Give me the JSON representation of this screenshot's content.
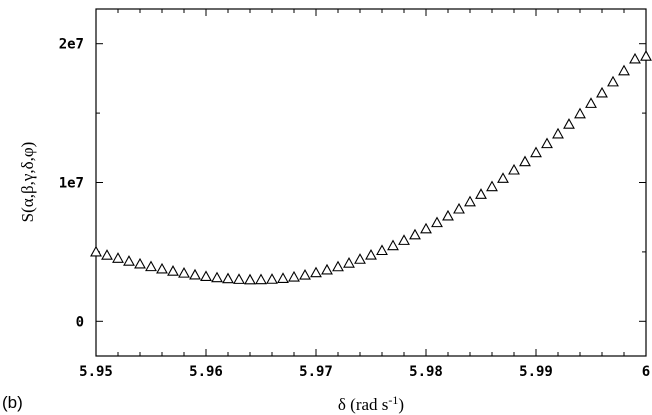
{
  "panel_label": "(b)",
  "chart_data": {
    "type": "scatter",
    "marker": "open-triangle",
    "xlabel_main": "δ (rad s",
    "xlabel_sup": "-1",
    "xlabel_close": ")",
    "ylabel": "S(α,β,γ,δ,φ)",
    "xlim": [
      5.95,
      6.0
    ],
    "ylim": [
      -2500000,
      22500000
    ],
    "x_ticks": [
      5.95,
      5.96,
      5.97,
      5.98,
      5.99,
      6.0
    ],
    "x_tick_labels": [
      "5.95",
      "5.96",
      "5.97",
      "5.98",
      "5.99",
      "6"
    ],
    "y_ticks": [
      0,
      10000000,
      20000000
    ],
    "y_tick_labels": [
      "0",
      "1e7",
      "2e7"
    ],
    "grid": false,
    "x": [
      5.95,
      5.951,
      5.952,
      5.953,
      5.954,
      5.955,
      5.956,
      5.957,
      5.958,
      5.959,
      5.96,
      5.961,
      5.962,
      5.963,
      5.964,
      5.965,
      5.966,
      5.967,
      5.968,
      5.969,
      5.97,
      5.971,
      5.972,
      5.973,
      5.974,
      5.975,
      5.976,
      5.977,
      5.978,
      5.979,
      5.98,
      5.981,
      5.982,
      5.983,
      5.984,
      5.985,
      5.986,
      5.987,
      5.988,
      5.989,
      5.99,
      5.991,
      5.992,
      5.993,
      5.994,
      5.995,
      5.996,
      5.997,
      5.998,
      5.999,
      6.0
    ],
    "values": [
      5000000,
      4760000,
      4540000,
      4330000,
      4130000,
      3940000,
      3770000,
      3610000,
      3470000,
      3340000,
      3230000,
      3140000,
      3070000,
      3020000,
      2990000,
      3000000,
      3030000,
      3090000,
      3190000,
      3330000,
      3500000,
      3700000,
      3930000,
      4190000,
      4470000,
      4770000,
      5100000,
      5450000,
      5830000,
      6230000,
      6660000,
      7110000,
      7590000,
      8090000,
      8610000,
      9150000,
      9700000,
      10300000,
      10900000,
      11500000,
      12150000,
      12800000,
      13500000,
      14200000,
      14950000,
      15700000,
      16450000,
      17250000,
      18050000,
      18900000,
      19100000
    ]
  }
}
